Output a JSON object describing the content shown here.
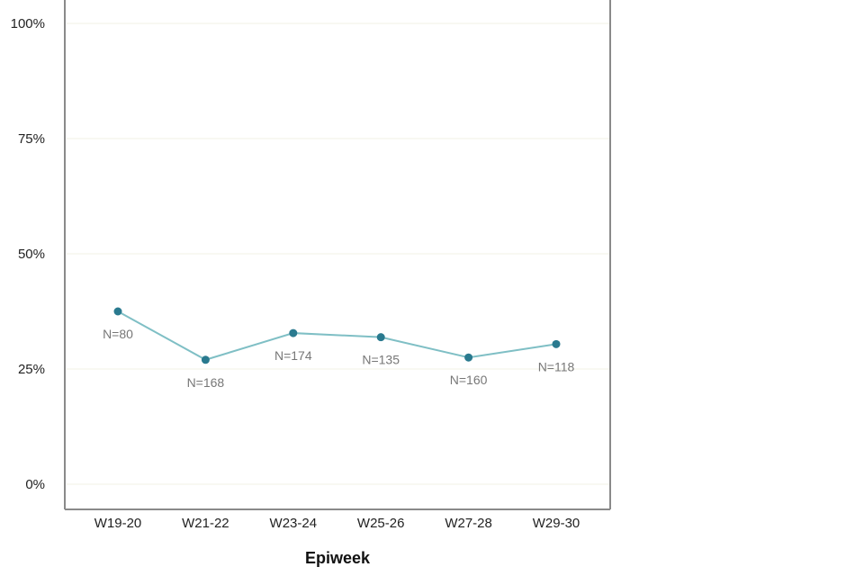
{
  "chart_data": {
    "type": "line",
    "xlabel": "Epiweek",
    "ylabel": "",
    "ylim": [
      0,
      100
    ],
    "yticks": [
      "0%",
      "25%",
      "50%",
      "75%",
      "100%"
    ],
    "categories": [
      "W19-20",
      "W21-22",
      "W23-24",
      "W25-26",
      "W27-28",
      "W29-30"
    ],
    "series": [
      {
        "values": [
          37.5,
          27.0,
          32.8,
          31.9,
          27.5,
          30.4
        ],
        "labels": [
          "N=80",
          "N=168",
          "N=174",
          "N=135",
          "N=160",
          "N=118"
        ],
        "color": "#7fbfc5",
        "marker_color": "#2a7a8f"
      }
    ],
    "grid": true,
    "legend": "none"
  }
}
